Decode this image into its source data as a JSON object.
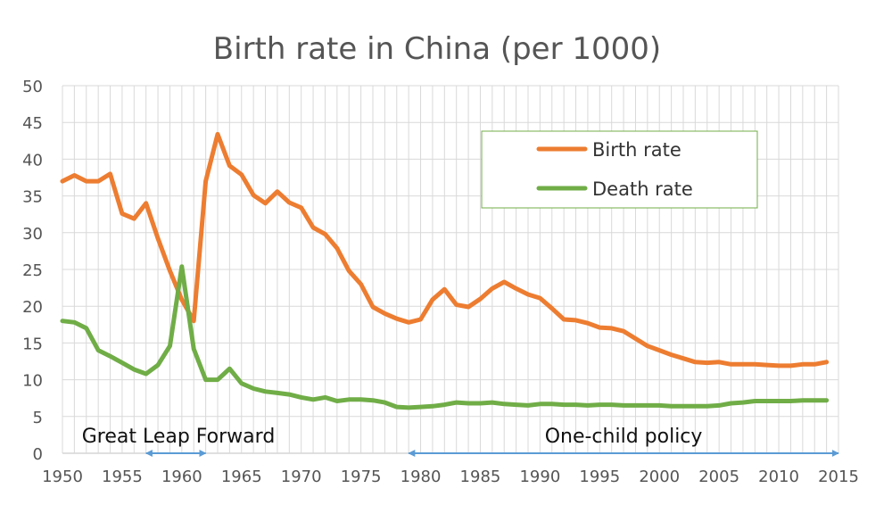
{
  "chart_data": {
    "type": "line",
    "title": "Birth rate in China (per 1000)",
    "xlabel": "",
    "ylabel": "",
    "xlim": [
      1950,
      2015
    ],
    "ylim": [
      0,
      50
    ],
    "x_ticks": [
      1950,
      1955,
      1960,
      1965,
      1970,
      1975,
      1980,
      1985,
      1990,
      1995,
      2000,
      2005,
      2010,
      2015
    ],
    "y_ticks": [
      0,
      5,
      10,
      15,
      20,
      25,
      30,
      35,
      40,
      45,
      50
    ],
    "grid": true,
    "legend_position": "top-right",
    "series": [
      {
        "name": "Birth rate",
        "color": "#ed7d31",
        "points": [
          [
            1950,
            37.0
          ],
          [
            1951,
            37.8
          ],
          [
            1952,
            37.0
          ],
          [
            1953,
            37.0
          ],
          [
            1954,
            38.0
          ],
          [
            1955,
            32.6
          ],
          [
            1956,
            31.9
          ],
          [
            1957,
            34.0
          ],
          [
            1958,
            29.2
          ],
          [
            1959,
            24.8
          ],
          [
            1960,
            20.9
          ],
          [
            1961,
            18.0
          ],
          [
            1962,
            37.0
          ],
          [
            1963,
            43.4
          ],
          [
            1964,
            39.1
          ],
          [
            1965,
            37.9
          ],
          [
            1966,
            35.1
          ],
          [
            1967,
            34.0
          ],
          [
            1968,
            35.6
          ],
          [
            1969,
            34.1
          ],
          [
            1970,
            33.4
          ],
          [
            1971,
            30.7
          ],
          [
            1972,
            29.8
          ],
          [
            1973,
            27.9
          ],
          [
            1974,
            24.8
          ],
          [
            1975,
            23.0
          ],
          [
            1976,
            19.9
          ],
          [
            1977,
            19.0
          ],
          [
            1978,
            18.3
          ],
          [
            1979,
            17.8
          ],
          [
            1980,
            18.2
          ],
          [
            1981,
            20.9
          ],
          [
            1982,
            22.3
          ],
          [
            1983,
            20.2
          ],
          [
            1984,
            19.9
          ],
          [
            1985,
            21.0
          ],
          [
            1986,
            22.4
          ],
          [
            1987,
            23.3
          ],
          [
            1988,
            22.4
          ],
          [
            1989,
            21.6
          ],
          [
            1990,
            21.1
          ],
          [
            1991,
            19.7
          ],
          [
            1992,
            18.2
          ],
          [
            1993,
            18.1
          ],
          [
            1994,
            17.7
          ],
          [
            1995,
            17.1
          ],
          [
            1996,
            17.0
          ],
          [
            1997,
            16.6
          ],
          [
            1998,
            15.6
          ],
          [
            1999,
            14.6
          ],
          [
            2000,
            14.0
          ],
          [
            2001,
            13.4
          ],
          [
            2002,
            12.9
          ],
          [
            2003,
            12.4
          ],
          [
            2004,
            12.3
          ],
          [
            2005,
            12.4
          ],
          [
            2006,
            12.1
          ],
          [
            2007,
            12.1
          ],
          [
            2008,
            12.1
          ],
          [
            2009,
            12.0
          ],
          [
            2010,
            11.9
          ],
          [
            2011,
            11.9
          ],
          [
            2012,
            12.1
          ],
          [
            2013,
            12.1
          ],
          [
            2014,
            12.4
          ]
        ]
      },
      {
        "name": "Death rate",
        "color": "#70ad47",
        "points": [
          [
            1950,
            18.0
          ],
          [
            1951,
            17.8
          ],
          [
            1952,
            17.0
          ],
          [
            1953,
            14.0
          ],
          [
            1954,
            13.2
          ],
          [
            1955,
            12.3
          ],
          [
            1956,
            11.4
          ],
          [
            1957,
            10.8
          ],
          [
            1958,
            12.0
          ],
          [
            1959,
            14.6
          ],
          [
            1960,
            25.4
          ],
          [
            1961,
            14.2
          ],
          [
            1962,
            10.0
          ],
          [
            1963,
            10.0
          ],
          [
            1964,
            11.5
          ],
          [
            1965,
            9.5
          ],
          [
            1966,
            8.8
          ],
          [
            1967,
            8.4
          ],
          [
            1968,
            8.2
          ],
          [
            1969,
            8.0
          ],
          [
            1970,
            7.6
          ],
          [
            1971,
            7.3
          ],
          [
            1972,
            7.6
          ],
          [
            1973,
            7.1
          ],
          [
            1974,
            7.3
          ],
          [
            1975,
            7.3
          ],
          [
            1976,
            7.2
          ],
          [
            1977,
            6.9
          ],
          [
            1978,
            6.3
          ],
          [
            1979,
            6.2
          ],
          [
            1980,
            6.3
          ],
          [
            1981,
            6.4
          ],
          [
            1982,
            6.6
          ],
          [
            1983,
            6.9
          ],
          [
            1984,
            6.8
          ],
          [
            1985,
            6.8
          ],
          [
            1986,
            6.9
          ],
          [
            1987,
            6.7
          ],
          [
            1988,
            6.6
          ],
          [
            1989,
            6.5
          ],
          [
            1990,
            6.7
          ],
          [
            1991,
            6.7
          ],
          [
            1992,
            6.6
          ],
          [
            1993,
            6.6
          ],
          [
            1994,
            6.5
          ],
          [
            1995,
            6.6
          ],
          [
            1996,
            6.6
          ],
          [
            1997,
            6.5
          ],
          [
            1998,
            6.5
          ],
          [
            1999,
            6.5
          ],
          [
            2000,
            6.5
          ],
          [
            2001,
            6.4
          ],
          [
            2002,
            6.4
          ],
          [
            2003,
            6.4
          ],
          [
            2004,
            6.4
          ],
          [
            2005,
            6.5
          ],
          [
            2006,
            6.8
          ],
          [
            2007,
            6.9
          ],
          [
            2008,
            7.1
          ],
          [
            2009,
            7.1
          ],
          [
            2010,
            7.1
          ],
          [
            2011,
            7.1
          ],
          [
            2012,
            7.2
          ],
          [
            2013,
            7.2
          ],
          [
            2014,
            7.2
          ]
        ]
      }
    ],
    "annotations": [
      {
        "label": "Great Leap Forward",
        "from": 1957,
        "to": 1962,
        "color": "#5b9bd5"
      },
      {
        "label": "One-child policy",
        "from": 1979,
        "to": 2015,
        "color": "#5b9bd5"
      }
    ]
  }
}
